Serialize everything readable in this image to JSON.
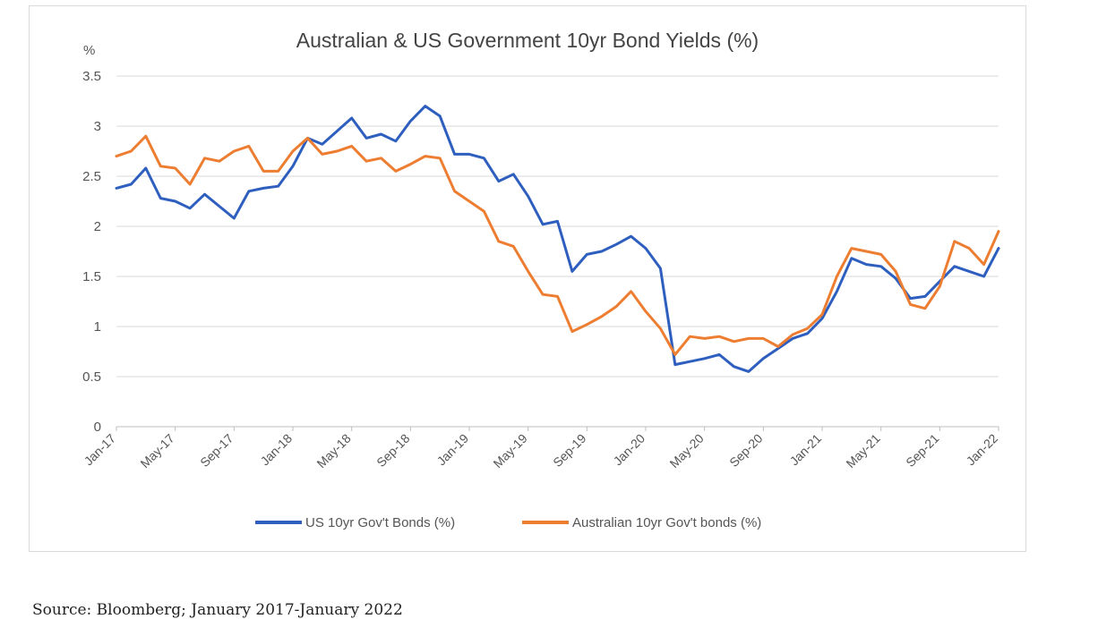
{
  "chart_data": {
    "type": "line",
    "title": "Australian & US Government  10yr Bond Yields (%)",
    "ylabel": "%",
    "xlabel": "",
    "ylim": [
      0,
      3.5
    ],
    "yticks": [
      "0",
      "0.5",
      "1",
      "1.5",
      "2",
      "2.5",
      "3",
      "3.5"
    ],
    "xticks": [
      "Jan-17",
      "May-17",
      "Sep-17",
      "Jan-18",
      "May-18",
      "Sep-18",
      "Jan-19",
      "May-19",
      "Sep-19",
      "Jan-20",
      "May-20",
      "Sep-20",
      "Jan-21",
      "May-21",
      "Sep-21",
      "Jan-22"
    ],
    "grid": "horizontal",
    "legend_position": "bottom",
    "series": [
      {
        "name": "US 10yr Gov't Bonds (%)",
        "color": "#2e5fbf",
        "points": [
          [
            "Jan-17",
            2.38
          ],
          [
            "Feb-17",
            2.42
          ],
          [
            "Mar-17",
            2.58
          ],
          [
            "Apr-17",
            2.28
          ],
          [
            "May-17",
            2.25
          ],
          [
            "Jun-17",
            2.18
          ],
          [
            "Jul-17",
            2.32
          ],
          [
            "Aug-17",
            2.2
          ],
          [
            "Sep-17",
            2.08
          ],
          [
            "Oct-17",
            2.35
          ],
          [
            "Nov-17",
            2.38
          ],
          [
            "Dec-17",
            2.4
          ],
          [
            "Jan-18",
            2.6
          ],
          [
            "Feb-18",
            2.88
          ],
          [
            "Mar-18",
            2.82
          ],
          [
            "Apr-18",
            2.95
          ],
          [
            "May-18",
            3.08
          ],
          [
            "Jun-18",
            2.88
          ],
          [
            "Jul-18",
            2.92
          ],
          [
            "Aug-18",
            2.85
          ],
          [
            "Sep-18",
            3.05
          ],
          [
            "Oct-18",
            3.2
          ],
          [
            "Nov-18",
            3.1
          ],
          [
            "Dec-18",
            2.72
          ],
          [
            "Jan-19",
            2.72
          ],
          [
            "Feb-19",
            2.68
          ],
          [
            "Mar-19",
            2.45
          ],
          [
            "Apr-19",
            2.52
          ],
          [
            "May-19",
            2.3
          ],
          [
            "Jun-19",
            2.02
          ],
          [
            "Jul-19",
            2.05
          ],
          [
            "Aug-19",
            1.55
          ],
          [
            "Sep-19",
            1.72
          ],
          [
            "Oct-19",
            1.75
          ],
          [
            "Nov-19",
            1.82
          ],
          [
            "Dec-19",
            1.9
          ],
          [
            "Jan-20",
            1.78
          ],
          [
            "Feb-20",
            1.58
          ],
          [
            "Mar-20",
            0.62
          ],
          [
            "Apr-20",
            0.65
          ],
          [
            "May-20",
            0.68
          ],
          [
            "Jun-20",
            0.72
          ],
          [
            "Jul-20",
            0.6
          ],
          [
            "Aug-20",
            0.55
          ],
          [
            "Sep-20",
            0.68
          ],
          [
            "Oct-20",
            0.78
          ],
          [
            "Nov-20",
            0.88
          ],
          [
            "Dec-20",
            0.93
          ],
          [
            "Jan-21",
            1.08
          ],
          [
            "Feb-21",
            1.35
          ],
          [
            "Mar-21",
            1.68
          ],
          [
            "Apr-21",
            1.62
          ],
          [
            "May-21",
            1.6
          ],
          [
            "Jun-21",
            1.48
          ],
          [
            "Jul-21",
            1.28
          ],
          [
            "Aug-21",
            1.3
          ],
          [
            "Sep-21",
            1.45
          ],
          [
            "Oct-21",
            1.6
          ],
          [
            "Nov-21",
            1.55
          ],
          [
            "Dec-21",
            1.5
          ],
          [
            "Jan-22",
            1.78
          ]
        ]
      },
      {
        "name": "Australian 10yr Gov't bonds (%)",
        "color": "#ed7d31",
        "points": [
          [
            "Jan-17",
            2.7
          ],
          [
            "Feb-17",
            2.75
          ],
          [
            "Mar-17",
            2.9
          ],
          [
            "Apr-17",
            2.6
          ],
          [
            "May-17",
            2.58
          ],
          [
            "Jun-17",
            2.42
          ],
          [
            "Jul-17",
            2.68
          ],
          [
            "Aug-17",
            2.65
          ],
          [
            "Sep-17",
            2.75
          ],
          [
            "Oct-17",
            2.8
          ],
          [
            "Nov-17",
            2.55
          ],
          [
            "Dec-17",
            2.55
          ],
          [
            "Jan-18",
            2.75
          ],
          [
            "Feb-18",
            2.88
          ],
          [
            "Mar-18",
            2.72
          ],
          [
            "Apr-18",
            2.75
          ],
          [
            "May-18",
            2.8
          ],
          [
            "Jun-18",
            2.65
          ],
          [
            "Jul-18",
            2.68
          ],
          [
            "Aug-18",
            2.55
          ],
          [
            "Sep-18",
            2.62
          ],
          [
            "Oct-18",
            2.7
          ],
          [
            "Nov-18",
            2.68
          ],
          [
            "Dec-18",
            2.35
          ],
          [
            "Jan-19",
            2.25
          ],
          [
            "Feb-19",
            2.15
          ],
          [
            "Mar-19",
            1.85
          ],
          [
            "Apr-19",
            1.8
          ],
          [
            "May-19",
            1.55
          ],
          [
            "Jun-19",
            1.32
          ],
          [
            "Jul-19",
            1.3
          ],
          [
            "Aug-19",
            0.95
          ],
          [
            "Sep-19",
            1.02
          ],
          [
            "Oct-19",
            1.1
          ],
          [
            "Nov-19",
            1.2
          ],
          [
            "Dec-19",
            1.35
          ],
          [
            "Jan-20",
            1.15
          ],
          [
            "Feb-20",
            0.98
          ],
          [
            "Mar-20",
            0.72
          ],
          [
            "Apr-20",
            0.9
          ],
          [
            "May-20",
            0.88
          ],
          [
            "Jun-20",
            0.9
          ],
          [
            "Jul-20",
            0.85
          ],
          [
            "Aug-20",
            0.88
          ],
          [
            "Sep-20",
            0.88
          ],
          [
            "Oct-20",
            0.8
          ],
          [
            "Nov-20",
            0.92
          ],
          [
            "Dec-20",
            0.98
          ],
          [
            "Jan-21",
            1.12
          ],
          [
            "Feb-21",
            1.5
          ],
          [
            "Mar-21",
            1.78
          ],
          [
            "Apr-21",
            1.75
          ],
          [
            "May-21",
            1.72
          ],
          [
            "Jun-21",
            1.55
          ],
          [
            "Jul-21",
            1.22
          ],
          [
            "Aug-21",
            1.18
          ],
          [
            "Sep-21",
            1.4
          ],
          [
            "Oct-21",
            1.85
          ],
          [
            "Nov-21",
            1.78
          ],
          [
            "Dec-21",
            1.62
          ],
          [
            "Jan-22",
            1.95
          ]
        ]
      }
    ]
  },
  "footer": {
    "source": "Source: Bloomberg; January 2017-January 2022"
  }
}
